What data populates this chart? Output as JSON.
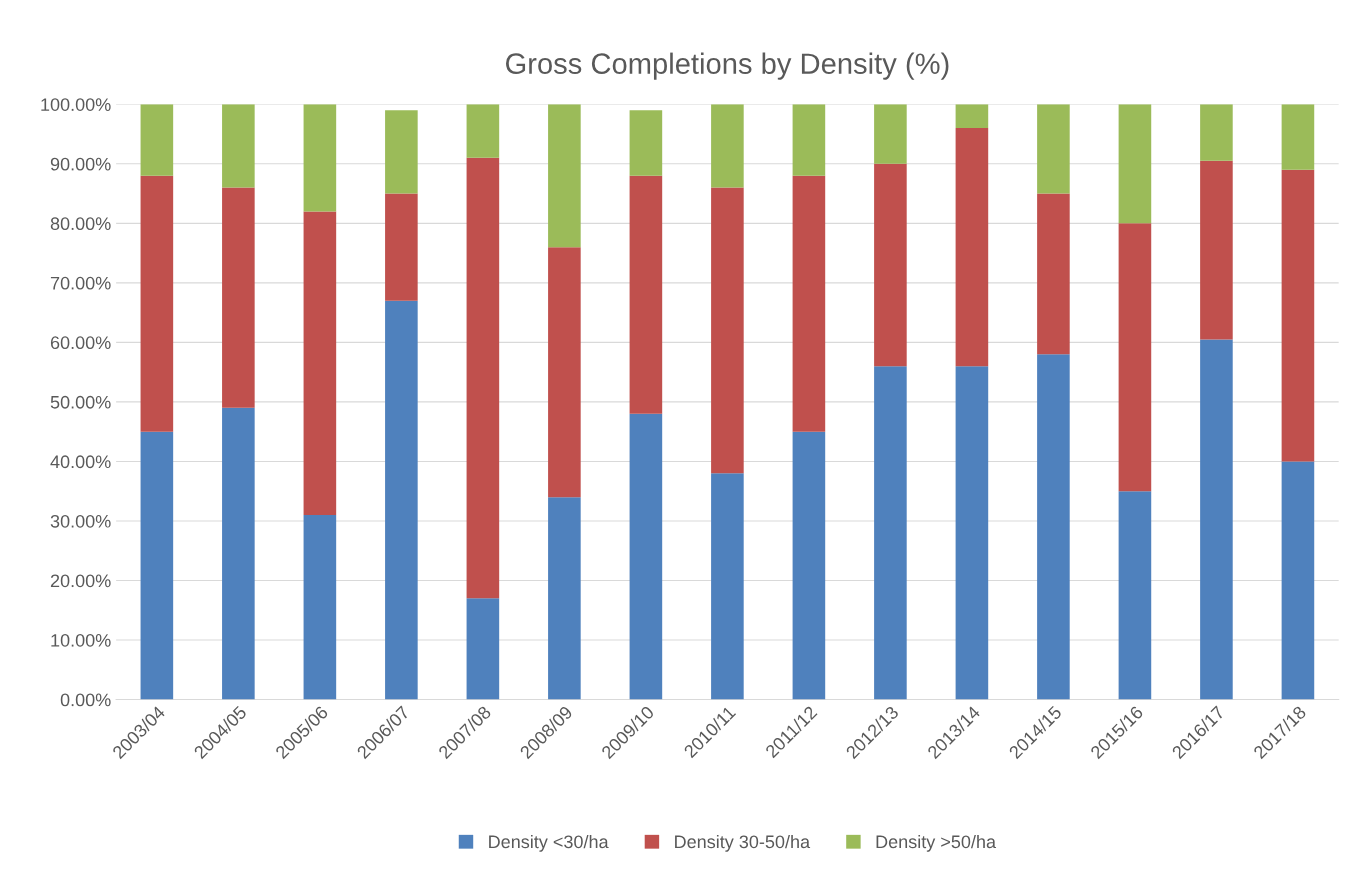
{
  "chart_data": {
    "type": "bar",
    "title": "Gross Completions by Density (%)",
    "stacked": true,
    "categories": [
      "2003/04",
      "2004/05",
      "2005/06",
      "2006/07",
      "2007/08",
      "2008/09",
      "2009/10",
      "2010/11",
      "2011/12",
      "2012/13",
      "2013/14",
      "2014/15",
      "2015/16",
      "2016/17",
      "2017/18"
    ],
    "series": [
      {
        "name": "Density <30/ha",
        "color": "#4f81bd",
        "values": [
          45,
          49,
          31,
          67,
          17,
          34,
          48,
          38,
          45,
          56,
          56,
          58,
          35,
          60.5,
          40
        ]
      },
      {
        "name": "Density 30-50/ha",
        "color": "#c0504d",
        "values": [
          43,
          37,
          51,
          18,
          74,
          42,
          40,
          48,
          43,
          34,
          40,
          27,
          45,
          30,
          49
        ]
      },
      {
        "name": "Density >50/ha",
        "color": "#9bbb59",
        "values": [
          12,
          14,
          18,
          14,
          9,
          24,
          11,
          14,
          12,
          10,
          4,
          15,
          20,
          9.5,
          11
        ]
      }
    ],
    "ylim": [
      0,
      100
    ],
    "yticks": [
      {
        "value": 0,
        "label": "0.00%"
      },
      {
        "value": 10,
        "label": "10.00%"
      },
      {
        "value": 20,
        "label": "20.00%"
      },
      {
        "value": 30,
        "label": "30.00%"
      },
      {
        "value": 40,
        "label": "40.00%"
      },
      {
        "value": 50,
        "label": "50.00%"
      },
      {
        "value": 60,
        "label": "60.00%"
      },
      {
        "value": 70,
        "label": "70.00%"
      },
      {
        "value": 80,
        "label": "80.00%"
      },
      {
        "value": 90,
        "label": "90.00%"
      },
      {
        "value": 100,
        "label": "100.00%"
      }
    ],
    "grid": "y",
    "legend": "bottom"
  }
}
